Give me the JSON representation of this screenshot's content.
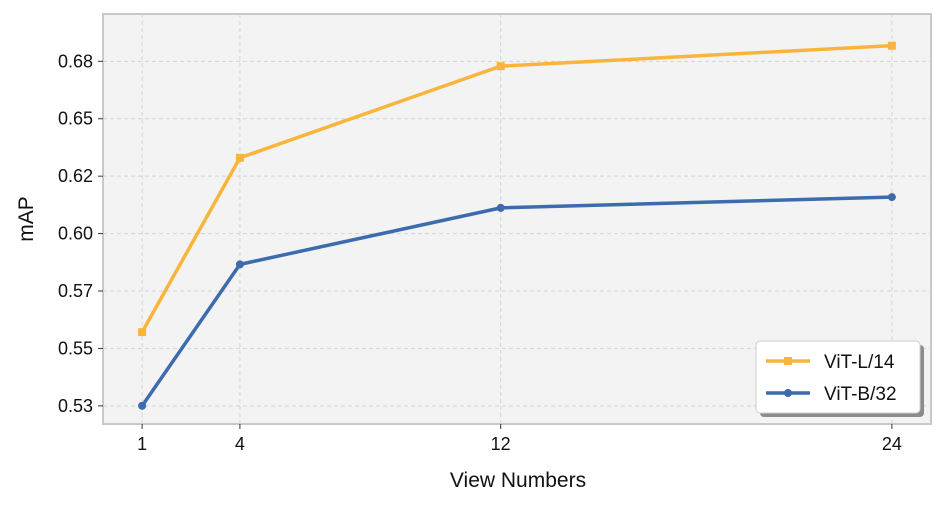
{
  "chart_data": {
    "type": "line",
    "title": "",
    "xlabel": "View Numbers",
    "ylabel": "mAP",
    "x": [
      1,
      4,
      12,
      24
    ],
    "xlim": [
      -0.2,
      25.2
    ],
    "ylim": [
      0.5218,
      0.7003
    ],
    "xticks": [
      1,
      4,
      12,
      24
    ],
    "yticks": [
      {
        "value": 0.5297,
        "label": "0.53"
      },
      {
        "value": 0.5547,
        "label": "0.55"
      },
      {
        "value": 0.5797,
        "label": "0.57"
      },
      {
        "value": 0.6047,
        "label": "0.60"
      },
      {
        "value": 0.6297,
        "label": "0.62"
      },
      {
        "value": 0.6547,
        "label": "0.65"
      },
      {
        "value": 0.6797,
        "label": "0.68"
      }
    ],
    "grid": true,
    "legend_position": "bottom-right",
    "series": [
      {
        "name": "ViT-L/14",
        "color": "#f9b53b",
        "marker": "square",
        "values": [
          0.5618,
          0.6377,
          0.6776,
          0.6865
        ]
      },
      {
        "name": "ViT-B/32",
        "color": "#3c6cad",
        "marker": "circle",
        "values": [
          0.5297,
          0.5913,
          0.6159,
          0.6206
        ]
      }
    ]
  }
}
